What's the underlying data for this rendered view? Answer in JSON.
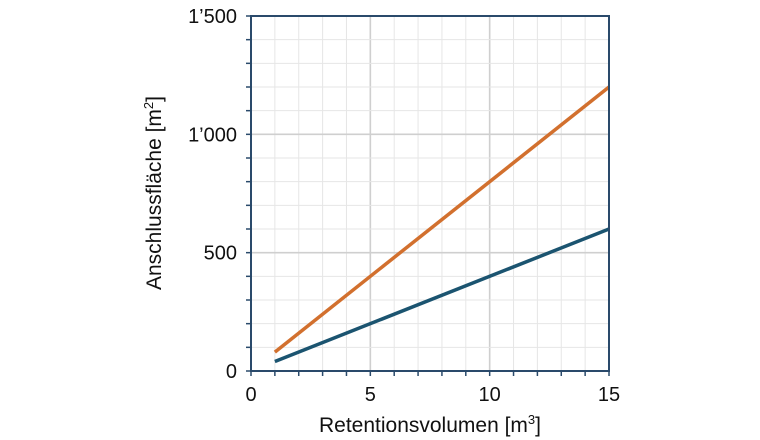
{
  "chart_data": {
    "type": "line",
    "title": "",
    "xlabel": "Retentionsvolumen [m",
    "xlabel_sup": "3",
    "xlabel_end": "]",
    "ylabel": "Anschlussfläche [m",
    "ylabel_sup": "2",
    "ylabel_end": "]",
    "xlim": [
      0,
      15
    ],
    "ylim": [
      0,
      1500
    ],
    "xticks": [
      0,
      5,
      10,
      15
    ],
    "xtick_labels": [
      "0",
      "5",
      "10",
      "15"
    ],
    "yticks": [
      0,
      500,
      1000,
      1500
    ],
    "ytick_labels": [
      "0",
      "500",
      "1’000",
      "1’500"
    ],
    "grid": true,
    "series": [
      {
        "color": "#d2702e",
        "x": [
          1,
          15
        ],
        "y": [
          80,
          1200
        ]
      },
      {
        "color": "#1b5470",
        "x": [
          1,
          15
        ],
        "y": [
          40,
          600
        ]
      }
    ],
    "frame_color": "#2a4a6b"
  }
}
